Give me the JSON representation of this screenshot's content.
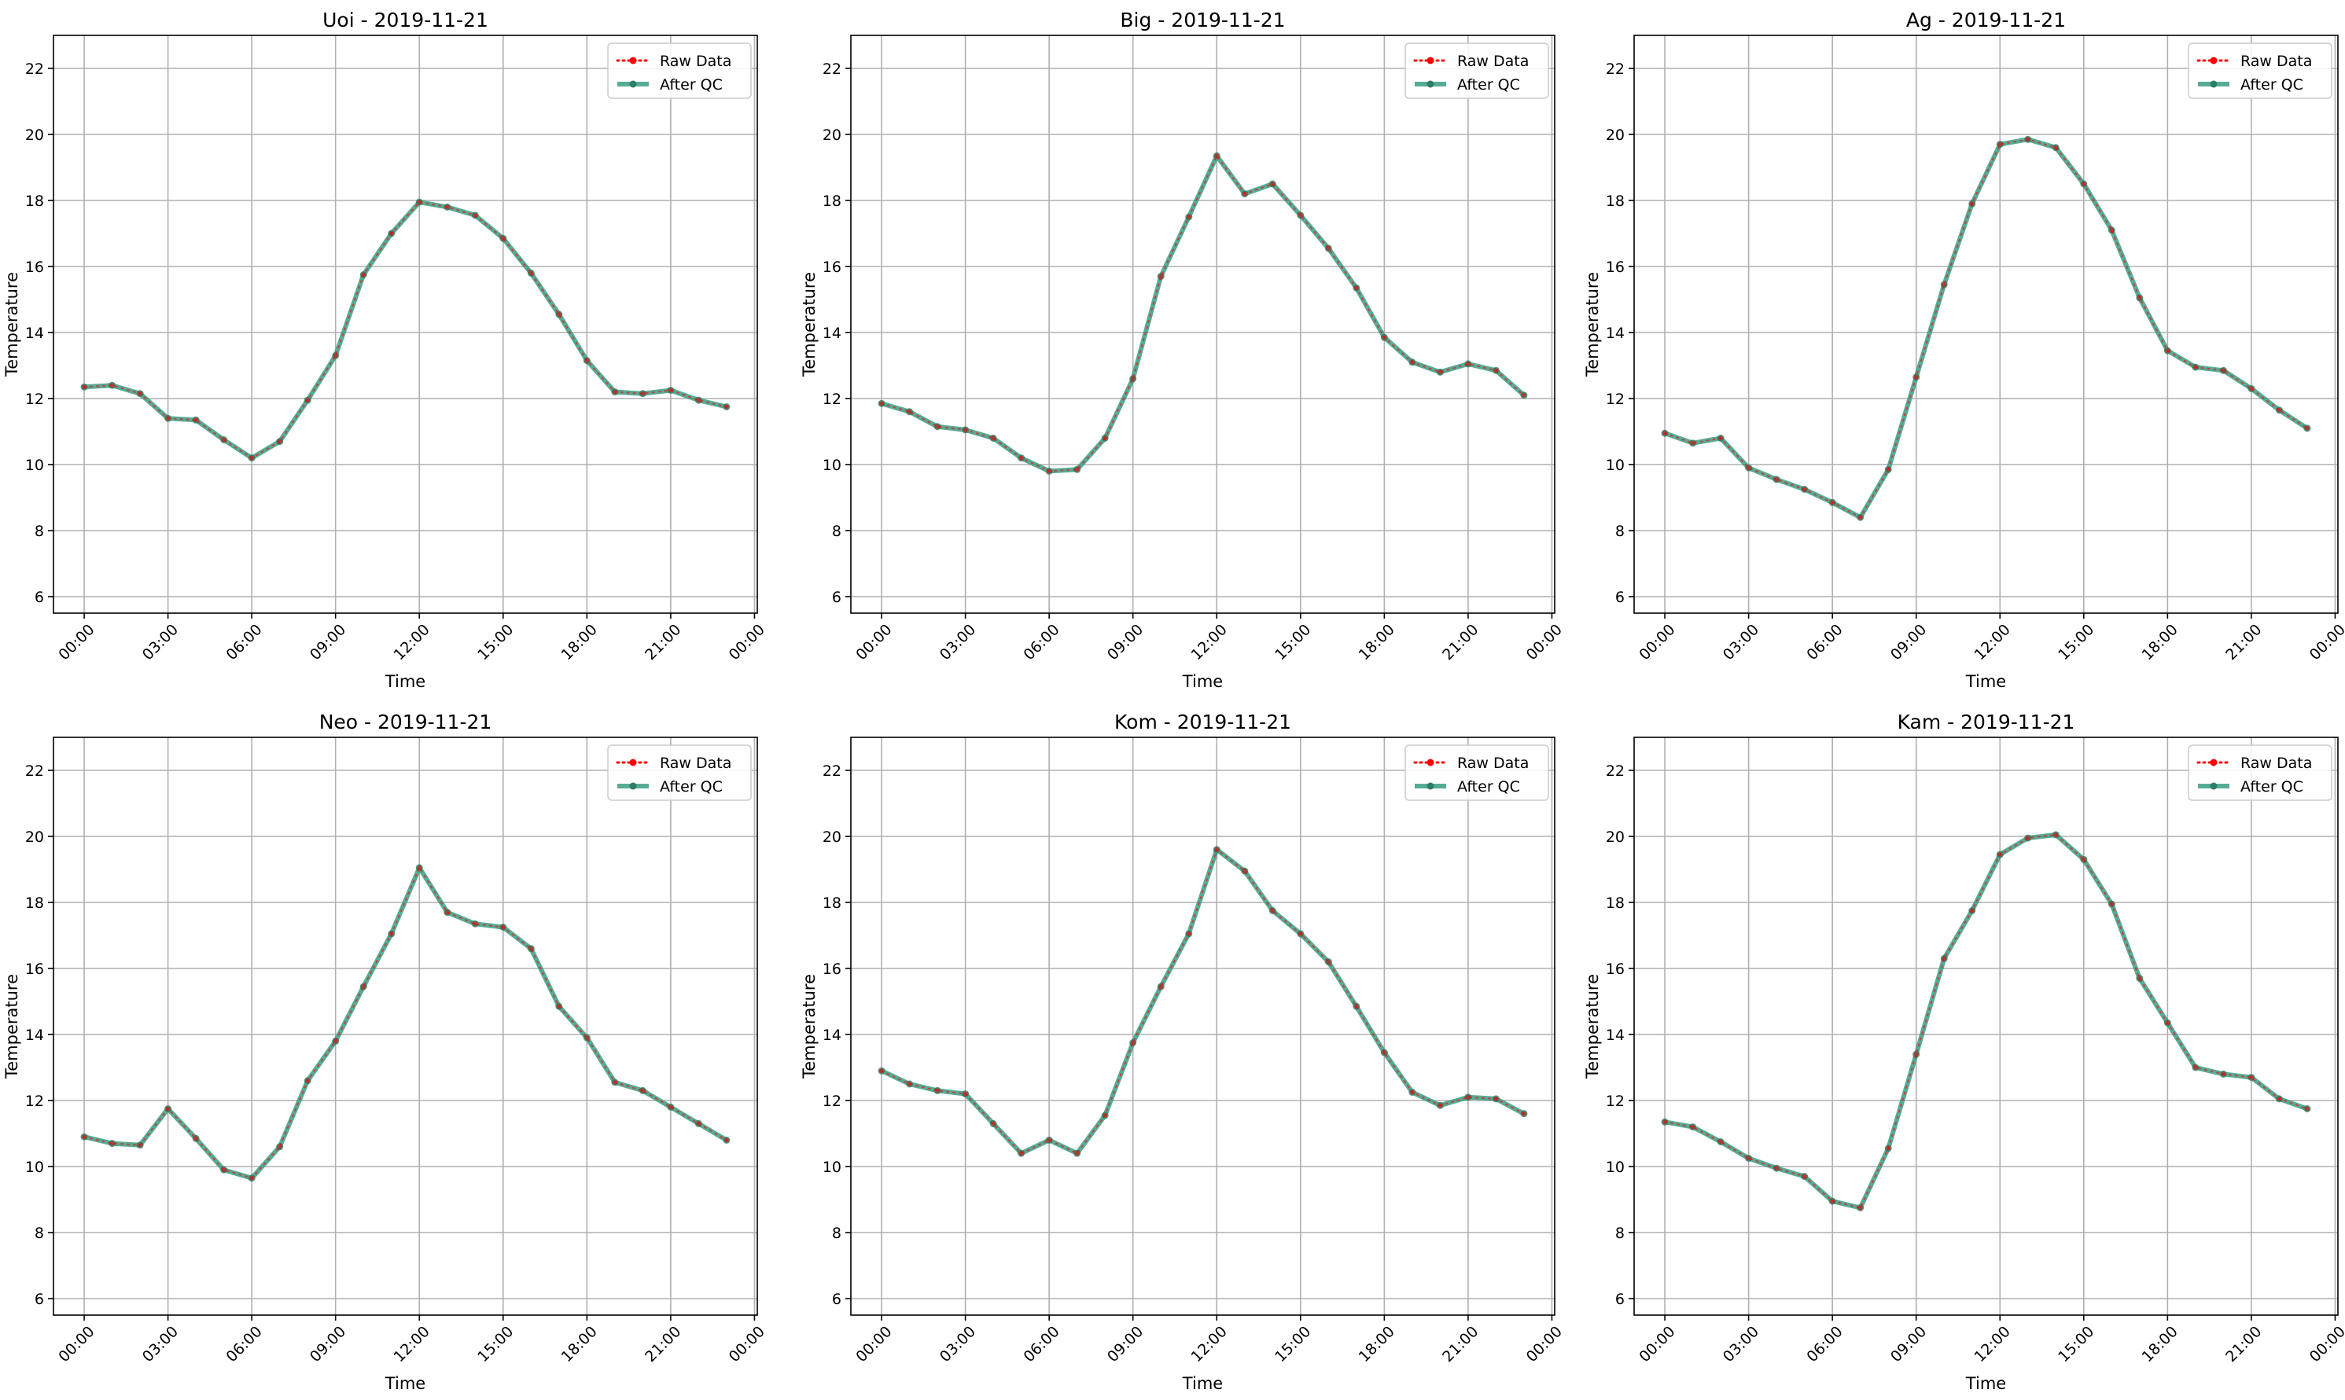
{
  "chart_data": [
    {
      "type": "line",
      "title": "Uoi - 2019-11-21",
      "xlabel": "Time",
      "ylabel": "Temperature",
      "xtick_labels": [
        "00:00",
        "03:00",
        "06:00",
        "09:00",
        "12:00",
        "15:00",
        "18:00",
        "21:00",
        "00:00"
      ],
      "ylim": [
        5.5,
        23
      ],
      "yticks": [
        6,
        8,
        10,
        12,
        14,
        16,
        18,
        20,
        22
      ],
      "grid": true,
      "legend_position": "top-right",
      "x": [
        0,
        1,
        2,
        3,
        4,
        5,
        6,
        7,
        8,
        9,
        10,
        11,
        12,
        13,
        14,
        15,
        16,
        17,
        18,
        19,
        20,
        21,
        22,
        23
      ],
      "series": [
        {
          "name": "Raw Data",
          "color": "#ff0000",
          "values": [
            12.35,
            12.4,
            12.15,
            11.4,
            11.35,
            10.75,
            10.2,
            10.7,
            11.95,
            13.3,
            15.75,
            17.0,
            17.95,
            17.8,
            17.55,
            16.85,
            15.8,
            14.55,
            13.15,
            12.2,
            12.15,
            12.25,
            11.95,
            11.75
          ]
        },
        {
          "name": "After QC",
          "color": "#3a9e84",
          "values": [
            12.35,
            12.4,
            12.15,
            11.4,
            11.35,
            10.75,
            10.2,
            10.7,
            11.95,
            13.3,
            15.75,
            17.0,
            17.95,
            17.8,
            17.55,
            16.85,
            15.8,
            14.55,
            13.15,
            12.2,
            12.15,
            12.25,
            11.95,
            11.75
          ]
        }
      ]
    },
    {
      "type": "line",
      "title": "Big - 2019-11-21",
      "xlabel": "Time",
      "ylabel": "Temperature",
      "xtick_labels": [
        "00:00",
        "03:00",
        "06:00",
        "09:00",
        "12:00",
        "15:00",
        "18:00",
        "21:00",
        "00:00"
      ],
      "ylim": [
        5.5,
        23
      ],
      "yticks": [
        6,
        8,
        10,
        12,
        14,
        16,
        18,
        20,
        22
      ],
      "grid": true,
      "legend_position": "top-right",
      "x": [
        0,
        1,
        2,
        3,
        4,
        5,
        6,
        7,
        8,
        9,
        10,
        11,
        12,
        13,
        14,
        15,
        16,
        17,
        18,
        19,
        20,
        21,
        22,
        23
      ],
      "series": [
        {
          "name": "Raw Data",
          "color": "#ff0000",
          "values": [
            11.85,
            11.6,
            11.15,
            11.05,
            10.8,
            10.2,
            9.8,
            9.85,
            10.8,
            12.6,
            15.7,
            17.5,
            19.35,
            18.2,
            18.5,
            17.55,
            16.55,
            15.35,
            13.85,
            13.1,
            12.8,
            13.05,
            12.85,
            12.1
          ]
        },
        {
          "name": "After QC",
          "color": "#3a9e84",
          "values": [
            11.85,
            11.6,
            11.15,
            11.05,
            10.8,
            10.2,
            9.8,
            9.85,
            10.8,
            12.6,
            15.7,
            17.5,
            19.35,
            18.2,
            18.5,
            17.55,
            16.55,
            15.35,
            13.85,
            13.1,
            12.8,
            13.05,
            12.85,
            12.1
          ]
        }
      ]
    },
    {
      "type": "line",
      "title": "Ag - 2019-11-21",
      "xlabel": "Time",
      "ylabel": "Temperature",
      "xtick_labels": [
        "00:00",
        "03:00",
        "06:00",
        "09:00",
        "12:00",
        "15:00",
        "18:00",
        "21:00",
        "00:00"
      ],
      "ylim": [
        5.5,
        23
      ],
      "yticks": [
        6,
        8,
        10,
        12,
        14,
        16,
        18,
        20,
        22
      ],
      "grid": true,
      "legend_position": "top-right",
      "x": [
        0,
        1,
        2,
        3,
        4,
        5,
        6,
        7,
        8,
        9,
        10,
        11,
        12,
        13,
        14,
        15,
        16,
        17,
        18,
        19,
        20,
        21,
        22,
        23
      ],
      "series": [
        {
          "name": "Raw Data",
          "color": "#ff0000",
          "values": [
            10.95,
            10.65,
            10.8,
            9.9,
            9.55,
            9.25,
            8.85,
            8.4,
            9.85,
            12.65,
            15.45,
            17.9,
            19.7,
            19.85,
            19.6,
            18.5,
            17.1,
            15.05,
            13.45,
            12.95,
            12.85,
            12.3,
            11.65,
            11.1
          ]
        },
        {
          "name": "After QC",
          "color": "#3a9e84",
          "values": [
            10.95,
            10.65,
            10.8,
            9.9,
            9.55,
            9.25,
            8.85,
            8.4,
            9.85,
            12.65,
            15.45,
            17.9,
            19.7,
            19.85,
            19.6,
            18.5,
            17.1,
            15.05,
            13.45,
            12.95,
            12.85,
            12.3,
            11.65,
            11.1
          ]
        }
      ]
    },
    {
      "type": "line",
      "title": "Neo - 2019-11-21",
      "xlabel": "Time",
      "ylabel": "Temperature",
      "xtick_labels": [
        "00:00",
        "03:00",
        "06:00",
        "09:00",
        "12:00",
        "15:00",
        "18:00",
        "21:00",
        "00:00"
      ],
      "ylim": [
        5.5,
        23
      ],
      "yticks": [
        6,
        8,
        10,
        12,
        14,
        16,
        18,
        20,
        22
      ],
      "grid": true,
      "legend_position": "top-right",
      "x": [
        0,
        1,
        2,
        3,
        4,
        5,
        6,
        7,
        8,
        9,
        10,
        11,
        12,
        13,
        14,
        15,
        16,
        17,
        18,
        19,
        20,
        21,
        22,
        23
      ],
      "series": [
        {
          "name": "Raw Data",
          "color": "#ff0000",
          "values": [
            10.9,
            10.7,
            10.65,
            11.75,
            10.85,
            9.9,
            9.65,
            10.6,
            12.6,
            13.8,
            15.45,
            17.05,
            19.05,
            17.7,
            17.35,
            17.25,
            16.6,
            14.85,
            13.9,
            12.55,
            12.3,
            11.8,
            11.3,
            10.8
          ]
        },
        {
          "name": "After QC",
          "color": "#3a9e84",
          "values": [
            10.9,
            10.7,
            10.65,
            11.75,
            10.85,
            9.9,
            9.65,
            10.6,
            12.6,
            13.8,
            15.45,
            17.05,
            19.05,
            17.7,
            17.35,
            17.25,
            16.6,
            14.85,
            13.9,
            12.55,
            12.3,
            11.8,
            11.3,
            10.8
          ]
        }
      ]
    },
    {
      "type": "line",
      "title": "Kom - 2019-11-21",
      "xlabel": "Time",
      "ylabel": "Temperature",
      "xtick_labels": [
        "00:00",
        "03:00",
        "06:00",
        "09:00",
        "12:00",
        "15:00",
        "18:00",
        "21:00",
        "00:00"
      ],
      "ylim": [
        5.5,
        23
      ],
      "yticks": [
        6,
        8,
        10,
        12,
        14,
        16,
        18,
        20,
        22
      ],
      "grid": true,
      "legend_position": "top-right",
      "x": [
        0,
        1,
        2,
        3,
        4,
        5,
        6,
        7,
        8,
        9,
        10,
        11,
        12,
        13,
        14,
        15,
        16,
        17,
        18,
        19,
        20,
        21,
        22,
        23
      ],
      "series": [
        {
          "name": "Raw Data",
          "color": "#ff0000",
          "values": [
            12.9,
            12.5,
            12.3,
            12.2,
            11.3,
            10.4,
            10.8,
            10.4,
            11.55,
            13.75,
            15.45,
            17.05,
            19.6,
            18.95,
            17.75,
            17.05,
            16.2,
            14.85,
            13.45,
            12.25,
            11.85,
            12.1,
            12.05,
            11.6
          ]
        },
        {
          "name": "After QC",
          "color": "#3a9e84",
          "values": [
            12.9,
            12.5,
            12.3,
            12.2,
            11.3,
            10.4,
            10.8,
            10.4,
            11.55,
            13.75,
            15.45,
            17.05,
            19.6,
            18.95,
            17.75,
            17.05,
            16.2,
            14.85,
            13.45,
            12.25,
            11.85,
            12.1,
            12.05,
            11.6
          ]
        }
      ]
    },
    {
      "type": "line",
      "title": "Kam - 2019-11-21",
      "xlabel": "Time",
      "ylabel": "Temperature",
      "xtick_labels": [
        "00:00",
        "03:00",
        "06:00",
        "09:00",
        "12:00",
        "15:00",
        "18:00",
        "21:00",
        "00:00"
      ],
      "ylim": [
        5.5,
        23
      ],
      "yticks": [
        6,
        8,
        10,
        12,
        14,
        16,
        18,
        20,
        22
      ],
      "grid": true,
      "legend_position": "top-right",
      "x": [
        0,
        1,
        2,
        3,
        4,
        5,
        6,
        7,
        8,
        9,
        10,
        11,
        12,
        13,
        14,
        15,
        16,
        17,
        18,
        19,
        20,
        21,
        22,
        23
      ],
      "series": [
        {
          "name": "Raw Data",
          "color": "#ff0000",
          "values": [
            11.35,
            11.2,
            10.75,
            10.25,
            9.95,
            9.7,
            8.95,
            8.75,
            10.55,
            13.4,
            16.3,
            17.75,
            19.45,
            19.95,
            20.05,
            19.3,
            17.95,
            15.7,
            14.35,
            13.0,
            12.8,
            12.7,
            12.05,
            11.75
          ]
        },
        {
          "name": "After QC",
          "color": "#3a9e84",
          "values": [
            11.35,
            11.2,
            10.75,
            10.25,
            9.95,
            9.7,
            8.95,
            8.75,
            10.55,
            13.4,
            16.3,
            17.75,
            19.45,
            19.95,
            20.05,
            19.3,
            17.95,
            15.7,
            14.35,
            13.0,
            12.8,
            12.7,
            12.05,
            11.75
          ]
        }
      ]
    }
  ]
}
